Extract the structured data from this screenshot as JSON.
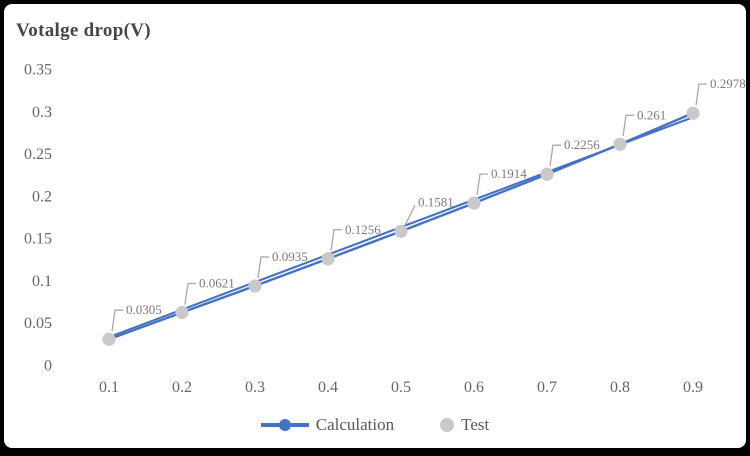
{
  "colors": {
    "accent_blue": "#4472C4",
    "test_gray": "#C9C9C9",
    "data_label_gray": "#7A7A7A",
    "leader_gray": "#A8A8A8",
    "axis_label_gray": "#666666",
    "legend_text_gray": "#595959",
    "title_gray": "#454545",
    "frame_black": "#000000",
    "background": "#FFFFFF"
  },
  "chart_data": {
    "type": "line",
    "title": "Votalge drop(V)",
    "title_position": "top-left",
    "grid": false,
    "legend_position": "bottom",
    "x": [
      0.1,
      0.2,
      0.3,
      0.4,
      0.5,
      0.6,
      0.7,
      0.8,
      0.9
    ],
    "x_ticklabels": [
      "0.1",
      "0.2",
      "0.3",
      "0.4",
      "0.5",
      "0.6",
      "0.7",
      "0.8",
      "0.9"
    ],
    "y_ticks": [
      0,
      0.05,
      0.1,
      0.15,
      0.2,
      0.25,
      0.3,
      0.35
    ],
    "y_ticklabels": [
      "0",
      "0.05",
      "0.1",
      "0.15",
      "0.2",
      "0.25",
      "0.3",
      "0.35"
    ],
    "ylim": [
      0,
      0.35
    ],
    "series": [
      {
        "name": "Calculation",
        "type": "line-with-markers",
        "color": "#4472C4",
        "values": [
          0.0305,
          0.0621,
          0.0935,
          0.1256,
          0.1581,
          0.1914,
          0.2256,
          0.261,
          0.2978
        ]
      },
      {
        "name": "Test",
        "type": "scatter",
        "color": "#C9C9C9",
        "values": [
          0.0305,
          0.0621,
          0.0935,
          0.1256,
          0.1581,
          0.1914,
          0.2256,
          0.261,
          0.2978
        ],
        "data_labels": [
          "0.0305",
          "0.0621",
          "0.0935",
          "0.1256",
          "0.1581",
          "0.1914",
          "0.2256",
          "0.261",
          "0.2978"
        ]
      }
    ],
    "trendline": {
      "series": "Calculation",
      "shape": "linear",
      "x_start": 0.1,
      "y_start": 0.033,
      "x_end": 0.9,
      "y_end": 0.293
    }
  }
}
